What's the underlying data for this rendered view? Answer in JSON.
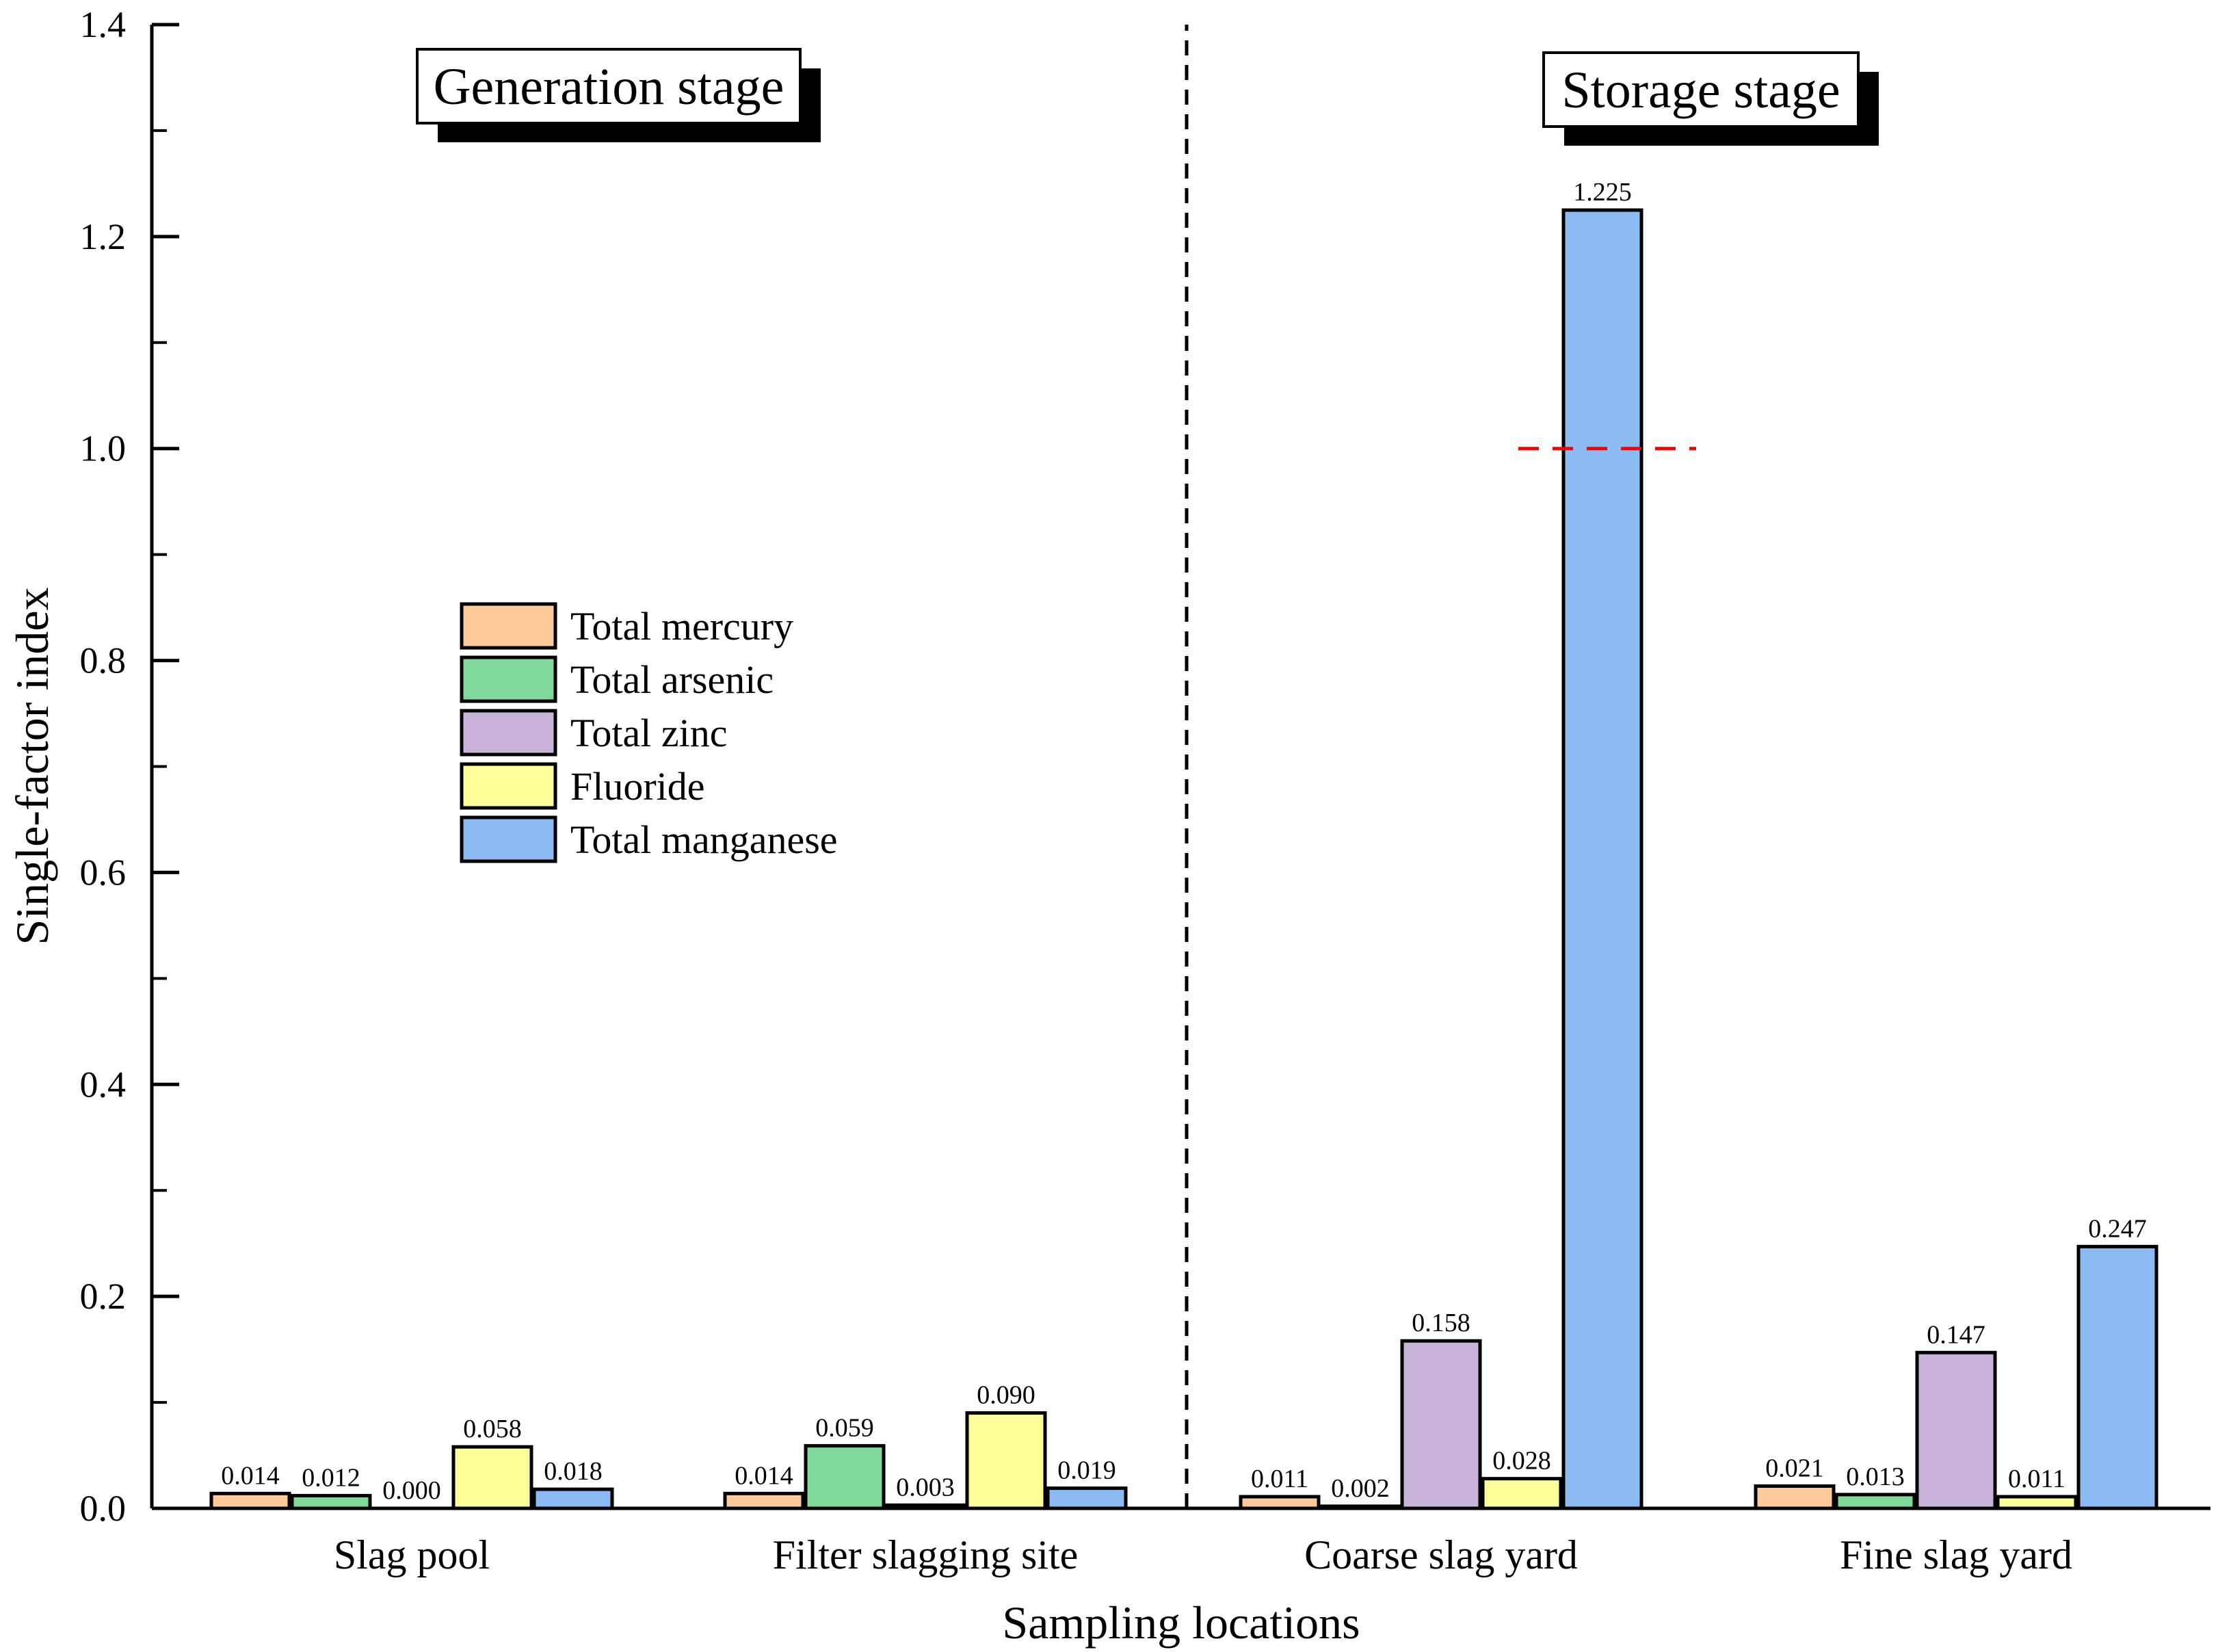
{
  "chart_data": {
    "type": "bar",
    "title": "",
    "xlabel": "Sampling locations",
    "ylabel": "Single-factor index",
    "ylim": [
      0,
      1.4
    ],
    "yticks": [
      "0.0",
      "0.2",
      "0.4",
      "0.6",
      "0.8",
      "1.0",
      "1.2",
      "1.4"
    ],
    "categories": [
      "Slag pool",
      "Filter slagging site",
      "Coarse slag yard",
      "Fine slag yard"
    ],
    "series": [
      {
        "name": "Total mercury",
        "color": "#FFC999",
        "values": [
          0.014,
          0.014,
          0.011,
          0.021
        ],
        "labels": [
          "0.014",
          "0.014",
          "0.011",
          "0.021"
        ]
      },
      {
        "name": "Total arsenic",
        "color": "#7FD99A",
        "values": [
          0.012,
          0.059,
          0.002,
          0.013
        ],
        "labels": [
          "0.012",
          "0.059",
          "0.002",
          "0.013"
        ]
      },
      {
        "name": "Total zinc",
        "color": "#C9B3D9",
        "values": [
          0.0,
          0.003,
          0.158,
          0.147
        ],
        "labels": [
          "0.000",
          "0.003",
          "0.158",
          "0.147"
        ]
      },
      {
        "name": "Fluoride",
        "color": "#FFFF99",
        "values": [
          0.058,
          0.09,
          0.028,
          0.011
        ],
        "labels": [
          "0.058",
          "0.090",
          "0.028",
          "0.011"
        ]
      },
      {
        "name": "Total manganese",
        "color": "#8CBAF2",
        "values": [
          0.018,
          0.019,
          1.225,
          0.247
        ],
        "labels": [
          "0.018",
          "0.019",
          "1.225",
          "0.247"
        ]
      }
    ],
    "stages": [
      "Generation stage",
      "Storage stage"
    ],
    "reference_line": {
      "value": 1.0,
      "color": "#FF0000",
      "style": "dashed"
    },
    "legend_position": "center-left"
  }
}
